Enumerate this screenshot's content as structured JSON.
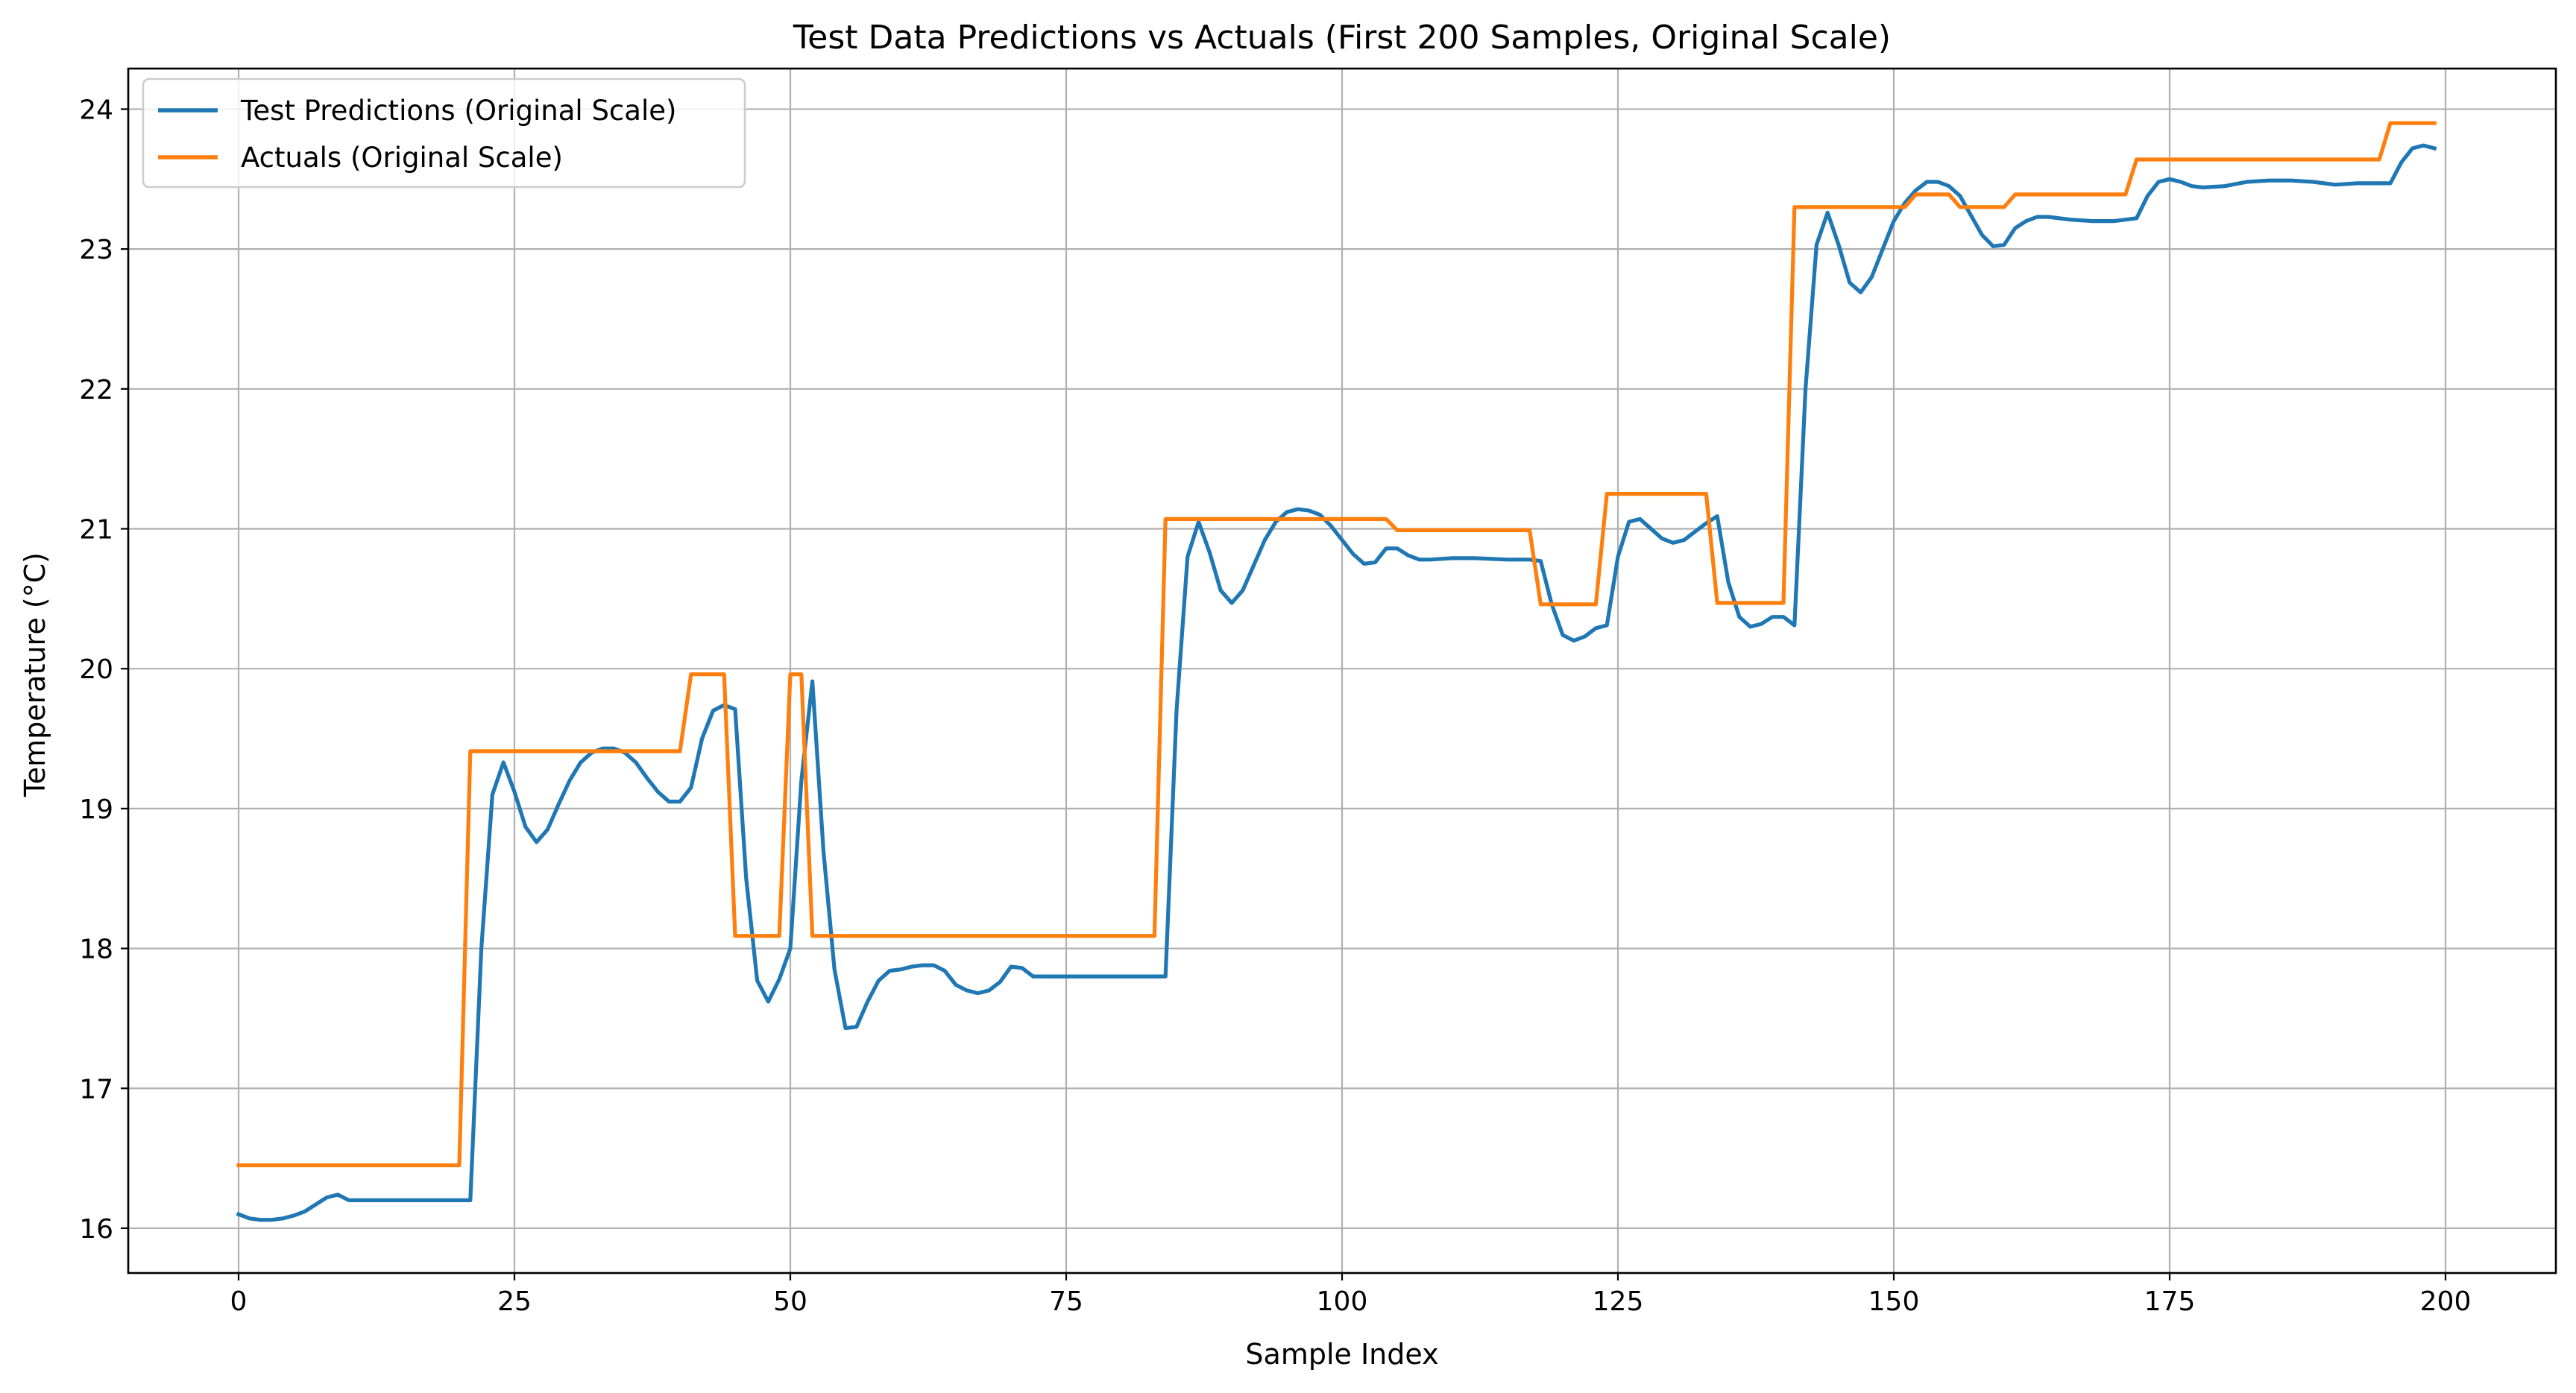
{
  "chart_data": {
    "type": "line",
    "title": "Test Data Predictions vs Actuals (First 200 Samples, Original Scale)",
    "xlabel": "Sample Index",
    "ylabel": "Temperature (°C)",
    "xlim": [
      -10,
      210
    ],
    "ylim": [
      15.68,
      24.29
    ],
    "xticks": [
      0,
      25,
      50,
      75,
      100,
      125,
      150,
      175,
      200
    ],
    "yticks": [
      16,
      17,
      18,
      19,
      20,
      21,
      22,
      23,
      24
    ],
    "grid": true,
    "legend_position": "top-left",
    "colors": {
      "predictions": "#1f77b4",
      "actuals": "#ff7f0e",
      "grid": "#b0b0b0"
    },
    "series": [
      {
        "name": "Test Predictions (Original Scale)",
        "key": "predictions",
        "points": [
          [
            0,
            16.1
          ],
          [
            1,
            16.07
          ],
          [
            2,
            16.06
          ],
          [
            3,
            16.06
          ],
          [
            4,
            16.07
          ],
          [
            5,
            16.09
          ],
          [
            6,
            16.12
          ],
          [
            7,
            16.17
          ],
          [
            8,
            16.22
          ],
          [
            9,
            16.24
          ],
          [
            10,
            16.2
          ],
          [
            15,
            16.2
          ],
          [
            20,
            16.2
          ],
          [
            21,
            16.2
          ],
          [
            22,
            18.0
          ],
          [
            23,
            19.1
          ],
          [
            24,
            19.33
          ],
          [
            25,
            19.12
          ],
          [
            26,
            18.87
          ],
          [
            27,
            18.76
          ],
          [
            28,
            18.85
          ],
          [
            29,
            19.03
          ],
          [
            30,
            19.2
          ],
          [
            31,
            19.33
          ],
          [
            32,
            19.4
          ],
          [
            33,
            19.43
          ],
          [
            34,
            19.43
          ],
          [
            35,
            19.4
          ],
          [
            36,
            19.33
          ],
          [
            37,
            19.22
          ],
          [
            38,
            19.12
          ],
          [
            39,
            19.05
          ],
          [
            40,
            19.05
          ],
          [
            41,
            19.15
          ],
          [
            42,
            19.5
          ],
          [
            43,
            19.7
          ],
          [
            44,
            19.74
          ],
          [
            45,
            19.71
          ],
          [
            46,
            18.5
          ],
          [
            47,
            17.77
          ],
          [
            48,
            17.62
          ],
          [
            49,
            17.78
          ],
          [
            50,
            18.0
          ],
          [
            51,
            19.2
          ],
          [
            52,
            19.91
          ],
          [
            53,
            18.7
          ],
          [
            54,
            17.85
          ],
          [
            55,
            17.43
          ],
          [
            56,
            17.44
          ],
          [
            57,
            17.62
          ],
          [
            58,
            17.77
          ],
          [
            59,
            17.84
          ],
          [
            60,
            17.85
          ],
          [
            61,
            17.87
          ],
          [
            62,
            17.88
          ],
          [
            63,
            17.88
          ],
          [
            64,
            17.84
          ],
          [
            65,
            17.74
          ],
          [
            66,
            17.7
          ],
          [
            67,
            17.68
          ],
          [
            68,
            17.7
          ],
          [
            69,
            17.76
          ],
          [
            70,
            17.87
          ],
          [
            71,
            17.86
          ],
          [
            72,
            17.8
          ],
          [
            75,
            17.8
          ],
          [
            80,
            17.8
          ],
          [
            84,
            17.8
          ],
          [
            85,
            19.7
          ],
          [
            86,
            20.8
          ],
          [
            87,
            21.05
          ],
          [
            88,
            20.83
          ],
          [
            89,
            20.56
          ],
          [
            90,
            20.47
          ],
          [
            91,
            20.56
          ],
          [
            92,
            20.74
          ],
          [
            93,
            20.92
          ],
          [
            94,
            21.05
          ],
          [
            95,
            21.12
          ],
          [
            96,
            21.14
          ],
          [
            97,
            21.13
          ],
          [
            98,
            21.1
          ],
          [
            99,
            21.02
          ],
          [
            100,
            20.92
          ],
          [
            101,
            20.82
          ],
          [
            102,
            20.75
          ],
          [
            103,
            20.76
          ],
          [
            104,
            20.86
          ],
          [
            105,
            20.86
          ],
          [
            106,
            20.81
          ],
          [
            107,
            20.78
          ],
          [
            108,
            20.78
          ],
          [
            110,
            20.79
          ],
          [
            112,
            20.79
          ],
          [
            115,
            20.78
          ],
          [
            117,
            20.78
          ],
          [
            118,
            20.77
          ],
          [
            119,
            20.46
          ],
          [
            120,
            20.24
          ],
          [
            121,
            20.2
          ],
          [
            122,
            20.23
          ],
          [
            123,
            20.29
          ],
          [
            124,
            20.31
          ],
          [
            125,
            20.8
          ],
          [
            126,
            21.05
          ],
          [
            127,
            21.07
          ],
          [
            128,
            21.0
          ],
          [
            129,
            20.93
          ],
          [
            130,
            20.9
          ],
          [
            131,
            20.92
          ],
          [
            132,
            20.98
          ],
          [
            133,
            21.04
          ],
          [
            134,
            21.09
          ],
          [
            135,
            20.62
          ],
          [
            136,
            20.37
          ],
          [
            137,
            20.3
          ],
          [
            138,
            20.32
          ],
          [
            139,
            20.37
          ],
          [
            140,
            20.37
          ],
          [
            141,
            20.31
          ],
          [
            142,
            22.0
          ],
          [
            143,
            23.03
          ],
          [
            144,
            23.26
          ],
          [
            145,
            23.03
          ],
          [
            146,
            22.76
          ],
          [
            147,
            22.69
          ],
          [
            148,
            22.8
          ],
          [
            149,
            23.0
          ],
          [
            150,
            23.2
          ],
          [
            151,
            23.33
          ],
          [
            152,
            23.42
          ],
          [
            153,
            23.48
          ],
          [
            154,
            23.48
          ],
          [
            155,
            23.45
          ],
          [
            156,
            23.38
          ],
          [
            157,
            23.24
          ],
          [
            158,
            23.1
          ],
          [
            159,
            23.02
          ],
          [
            160,
            23.03
          ],
          [
            161,
            23.15
          ],
          [
            162,
            23.2
          ],
          [
            163,
            23.23
          ],
          [
            164,
            23.23
          ],
          [
            166,
            23.21
          ],
          [
            168,
            23.2
          ],
          [
            170,
            23.2
          ],
          [
            172,
            23.22
          ],
          [
            173,
            23.38
          ],
          [
            174,
            23.48
          ],
          [
            175,
            23.5
          ],
          [
            176,
            23.48
          ],
          [
            177,
            23.45
          ],
          [
            178,
            23.44
          ],
          [
            180,
            23.45
          ],
          [
            182,
            23.48
          ],
          [
            184,
            23.49
          ],
          [
            186,
            23.49
          ],
          [
            188,
            23.48
          ],
          [
            190,
            23.46
          ],
          [
            192,
            23.47
          ],
          [
            194,
            23.47
          ],
          [
            195,
            23.47
          ],
          [
            196,
            23.62
          ],
          [
            197,
            23.72
          ],
          [
            198,
            23.74
          ],
          [
            199,
            23.72
          ]
        ]
      },
      {
        "name": "Actuals (Original Scale)",
        "key": "actuals",
        "points": [
          [
            0,
            16.45
          ],
          [
            20,
            16.45
          ],
          [
            21,
            19.41
          ],
          [
            40,
            19.41
          ],
          [
            41,
            19.96
          ],
          [
            44,
            19.96
          ],
          [
            45,
            18.09
          ],
          [
            49,
            18.09
          ],
          [
            50,
            19.96
          ],
          [
            51,
            19.96
          ],
          [
            52,
            18.09
          ],
          [
            83,
            18.09
          ],
          [
            84,
            21.07
          ],
          [
            104,
            21.07
          ],
          [
            105,
            20.99
          ],
          [
            117,
            20.99
          ],
          [
            118,
            20.46
          ],
          [
            123,
            20.46
          ],
          [
            124,
            21.25
          ],
          [
            133,
            21.25
          ],
          [
            134,
            20.47
          ],
          [
            140,
            20.47
          ],
          [
            141,
            23.3
          ],
          [
            151,
            23.3
          ],
          [
            152,
            23.39
          ],
          [
            155,
            23.39
          ],
          [
            156,
            23.3
          ],
          [
            160,
            23.3
          ],
          [
            161,
            23.39
          ],
          [
            171,
            23.39
          ],
          [
            172,
            23.64
          ],
          [
            194,
            23.64
          ],
          [
            195,
            23.9
          ],
          [
            199,
            23.9
          ]
        ]
      }
    ]
  }
}
